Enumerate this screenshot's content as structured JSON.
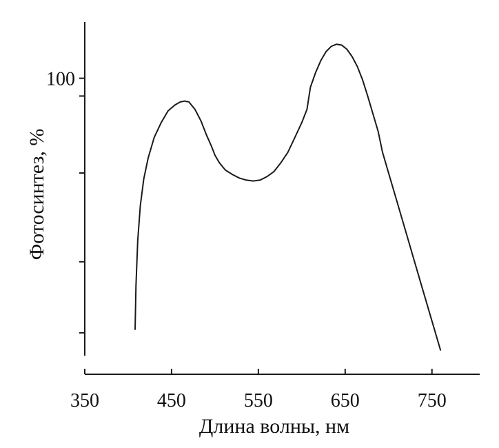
{
  "chart_data": {
    "type": "line",
    "title": "",
    "xlabel": "Длина волны, нм",
    "ylabel": "Фотосинтез, %",
    "xlim": [
      350,
      805
    ],
    "ylim": [
      0,
      119
    ],
    "x_ticks": [
      {
        "value": 350,
        "label": "350"
      },
      {
        "value": 450,
        "label": "450"
      },
      {
        "value": 550,
        "label": "550"
      },
      {
        "value": 650,
        "label": "650"
      },
      {
        "value": 750,
        "label": "750"
      }
    ],
    "y_ticks": [
      {
        "value": 14,
        "label": ""
      },
      {
        "value": 38,
        "label": ""
      },
      {
        "value": 68,
        "label": ""
      },
      {
        "value": 94,
        "label": ""
      },
      {
        "value": 100,
        "label": "100"
      }
    ],
    "grid": false,
    "legend": "none",
    "series": [
      {
        "x": [
          408,
          409,
          411,
          414,
          418,
          423,
          430,
          438,
          446,
          454,
          460,
          465,
          470,
          477,
          484,
          490,
          496,
          500,
          505,
          512,
          520,
          528,
          536,
          544,
          552,
          560,
          568,
          576,
          584,
          592,
          600,
          606,
          610,
          616,
          622,
          628,
          634,
          640,
          646,
          652,
          658,
          664,
          670,
          676,
          682,
          688,
          693,
          700,
          710,
          720,
          730,
          740,
          750,
          760
        ],
        "y": [
          15,
          30,
          45,
          57,
          66,
          73,
          80,
          85,
          89,
          91,
          92,
          92.3,
          92,
          89.5,
          85.5,
          81,
          77,
          74,
          71.5,
          69,
          67.5,
          66.3,
          65.6,
          65.3,
          65.6,
          66.8,
          68.5,
          71.5,
          75,
          80,
          85,
          89.5,
          97,
          102,
          106,
          109,
          110.8,
          111.5,
          111.2,
          109.8,
          107.3,
          104,
          99.5,
          94,
          88,
          82,
          75,
          68,
          58,
          48,
          38,
          28,
          18,
          8
        ]
      }
    ]
  }
}
